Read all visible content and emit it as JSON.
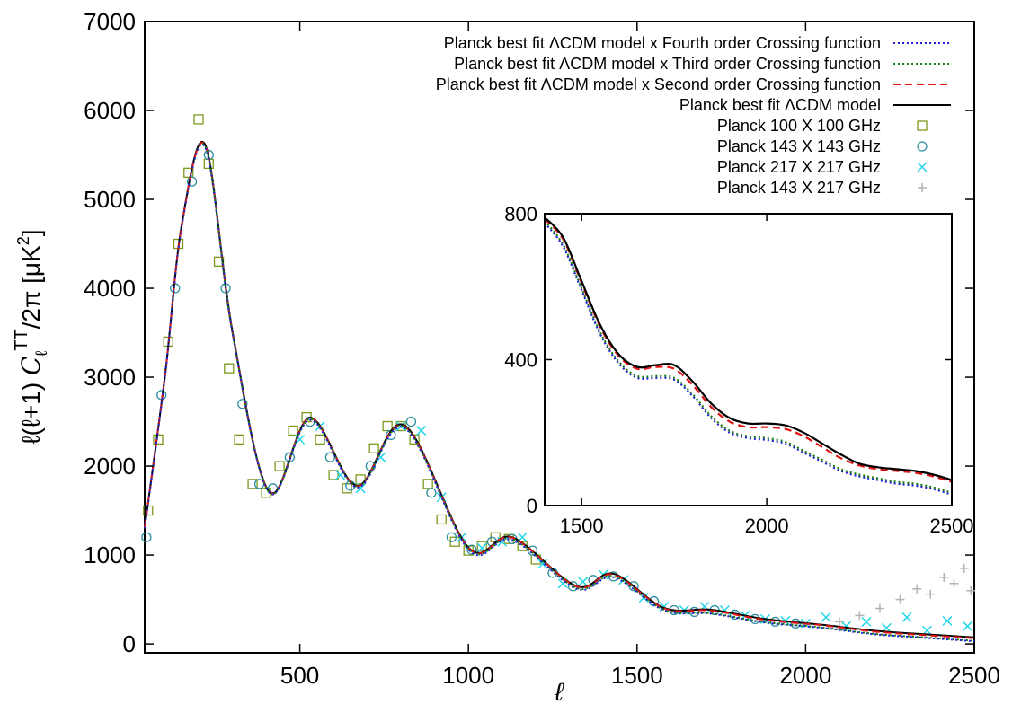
{
  "chart_data": [
    {
      "type": "scatter",
      "role": "main",
      "xlabel": "ℓ",
      "ylabel": {
        "prefix": "ℓ(ℓ+1) ",
        "symbol": "C",
        "sub": "ℓ",
        "sup": "TT",
        "fraction": "/2π",
        "unit_open": " [μK",
        "unit_exp": "2",
        "unit_close": "]"
      },
      "xlim": [
        40,
        2500
      ],
      "ylim": [
        -100,
        7000
      ],
      "x_ticks": [
        500,
        1000,
        1500,
        2000,
        2500
      ],
      "x_tick_labels": [
        "500",
        "1000",
        "1500",
        "2000",
        "2500"
      ],
      "y_ticks": [
        0,
        1000,
        2000,
        3000,
        4000,
        5000,
        6000,
        7000
      ],
      "y_tick_labels": [
        "0",
        "1000",
        "2000",
        "3000",
        "4000",
        "5000",
        "6000",
        "7000"
      ],
      "grid": false,
      "legend_position": "top-right",
      "series": [
        {
          "name": "Planck best fit ΛCDM model x Fourth order Crossing function",
          "kind": "line",
          "style": "dotted",
          "color": "#1f1fd6",
          "x": [
            40,
            100,
            150,
            220,
            300,
            410,
            530,
            670,
            810,
            1000,
            1130,
            1320,
            1430,
            1580,
            1720,
            1880,
            2050,
            2200,
            2350,
            2500
          ],
          "y": [
            1300,
            3000,
            4700,
            5580,
            3500,
            1700,
            2520,
            1760,
            2430,
            1060,
            1170,
            620,
            750,
            380,
            340,
            240,
            180,
            110,
            70,
            30
          ]
        },
        {
          "name": "Planck best fit ΛCDM model x Third order Crossing function",
          "kind": "line",
          "style": "dotted",
          "color": "#1a7f1a",
          "x": [
            40,
            100,
            150,
            220,
            300,
            410,
            530,
            670,
            810,
            1000,
            1130,
            1320,
            1430,
            1580,
            1720,
            1880,
            2050,
            2200,
            2350,
            2500
          ],
          "y": [
            1300,
            3000,
            4700,
            5590,
            3500,
            1700,
            2530,
            1770,
            2440,
            1070,
            1180,
            630,
            760,
            385,
            345,
            245,
            185,
            115,
            75,
            35
          ]
        },
        {
          "name": "Planck best fit ΛCDM model x Second order Crossing function",
          "kind": "line",
          "style": "dashed",
          "color": "#e01414",
          "x": [
            40,
            100,
            150,
            220,
            300,
            410,
            530,
            670,
            810,
            1000,
            1130,
            1320,
            1430,
            1580,
            1720,
            1880,
            2050,
            2200,
            2350,
            2500
          ],
          "y": [
            1310,
            3010,
            4710,
            5600,
            3510,
            1705,
            2540,
            1775,
            2450,
            1080,
            1195,
            645,
            780,
            400,
            375,
            270,
            210,
            140,
            100,
            65
          ]
        },
        {
          "name": "Planck best fit ΛCDM model",
          "kind": "line",
          "style": "solid",
          "color": "#000000",
          "x": [
            40,
            100,
            150,
            220,
            300,
            410,
            530,
            670,
            810,
            1000,
            1130,
            1320,
            1430,
            1580,
            1720,
            1880,
            2050,
            2200,
            2350,
            2500
          ],
          "y": [
            1310,
            3010,
            4720,
            5610,
            3520,
            1710,
            2545,
            1780,
            2460,
            1085,
            1200,
            650,
            790,
            405,
            385,
            280,
            215,
            150,
            110,
            75
          ]
        },
        {
          "name": "Planck 100 X 100 GHz",
          "kind": "points",
          "marker": "square",
          "color": "#7a9a1e",
          "x": [
            50,
            80,
            110,
            140,
            170,
            200,
            230,
            260,
            290,
            320,
            360,
            400,
            440,
            480,
            520,
            560,
            600,
            640,
            680,
            720,
            760,
            800,
            840,
            880,
            920,
            960,
            1000,
            1040,
            1080,
            1120,
            1160,
            1200
          ],
          "y": [
            1500,
            2300,
            3400,
            4500,
            5300,
            5900,
            5400,
            4300,
            3100,
            2300,
            1800,
            1700,
            2000,
            2400,
            2550,
            2300,
            1900,
            1750,
            1850,
            2200,
            2450,
            2450,
            2300,
            1800,
            1400,
            1150,
            1050,
            1100,
            1200,
            1180,
            1100,
            950
          ]
        },
        {
          "name": "Planck 143 X 143 GHz",
          "kind": "points",
          "marker": "circle",
          "color": "#2e8fa0",
          "x": [
            45,
            90,
            130,
            180,
            230,
            280,
            330,
            380,
            420,
            470,
            530,
            590,
            650,
            710,
            770,
            830,
            890,
            950,
            1010,
            1070,
            1130,
            1190,
            1250,
            1310,
            1370,
            1430,
            1490,
            1550,
            1610,
            1670,
            1730,
            1790,
            1850,
            1910,
            1970
          ],
          "y": [
            1200,
            2800,
            4000,
            5200,
            5500,
            4000,
            2700,
            1800,
            1750,
            2100,
            2500,
            2100,
            1780,
            2000,
            2350,
            2500,
            1700,
            1200,
            1060,
            1150,
            1180,
            1050,
            800,
            650,
            720,
            760,
            650,
            480,
            380,
            360,
            380,
            330,
            280,
            250,
            230
          ]
        },
        {
          "name": "Planck 217 X 217 GHz",
          "kind": "points",
          "marker": "cross",
          "color": "#22d6e8",
          "x": [
            500,
            560,
            620,
            680,
            740,
            800,
            860,
            920,
            980,
            1040,
            1100,
            1160,
            1220,
            1280,
            1340,
            1400,
            1460,
            1520,
            1580,
            1640,
            1700,
            1760,
            1820,
            1880,
            1940,
            2000,
            2060,
            2120,
            2180,
            2240,
            2300,
            2360,
            2420,
            2480
          ],
          "y": [
            2300,
            2450,
            1900,
            1750,
            2100,
            2450,
            2400,
            1650,
            1200,
            1080,
            1150,
            1200,
            900,
            680,
            700,
            780,
            720,
            520,
            420,
            380,
            420,
            380,
            320,
            280,
            260,
            230,
            300,
            200,
            250,
            180,
            300,
            150,
            260,
            200
          ]
        },
        {
          "name": "Planck 143 X 217 GHz",
          "kind": "points",
          "marker": "plus",
          "color": "#b3b3b3",
          "x": [
            2100,
            2160,
            2220,
            2280,
            2330,
            2370,
            2410,
            2440,
            2470,
            2490
          ],
          "y": [
            250,
            320,
            400,
            500,
            620,
            560,
            750,
            680,
            850,
            600
          ]
        }
      ]
    },
    {
      "type": "line",
      "role": "inset",
      "xlim": [
        1400,
        2500
      ],
      "ylim": [
        0,
        800
      ],
      "x_ticks": [
        1500,
        2000,
        2500
      ],
      "x_tick_labels": [
        "1500",
        "2000",
        "2500"
      ],
      "y_ticks": [
        0,
        400,
        800
      ],
      "y_tick_labels": [
        "0",
        "400",
        "800"
      ],
      "series": [
        {
          "style": "dotted",
          "color": "#1f1fd6",
          "x": [
            1400,
            1450,
            1500,
            1550,
            1600,
            1650,
            1700,
            1750,
            1800,
            1850,
            1900,
            1950,
            2000,
            2050,
            2100,
            2150,
            2200,
            2250,
            2300,
            2350,
            2400,
            2450,
            2500
          ],
          "y": [
            775,
            710,
            590,
            470,
            390,
            350,
            350,
            345,
            300,
            240,
            200,
            185,
            180,
            170,
            145,
            120,
            95,
            80,
            70,
            60,
            55,
            45,
            30
          ]
        },
        {
          "style": "dotted",
          "color": "#1a7f1a",
          "x": [
            1400,
            1450,
            1500,
            1550,
            1600,
            1650,
            1700,
            1750,
            1800,
            1850,
            1900,
            1950,
            2000,
            2050,
            2100,
            2150,
            2200,
            2250,
            2300,
            2350,
            2400,
            2450,
            2500
          ],
          "y": [
            780,
            715,
            595,
            475,
            395,
            355,
            355,
            350,
            305,
            245,
            205,
            190,
            185,
            175,
            150,
            125,
            100,
            85,
            75,
            65,
            60,
            50,
            35
          ]
        },
        {
          "style": "dashed",
          "color": "#e01414",
          "x": [
            1400,
            1450,
            1500,
            1550,
            1600,
            1650,
            1700,
            1750,
            1800,
            1850,
            1900,
            1950,
            2000,
            2050,
            2100,
            2150,
            2200,
            2250,
            2300,
            2350,
            2400,
            2450,
            2500
          ],
          "y": [
            785,
            730,
            610,
            490,
            410,
            375,
            380,
            375,
            330,
            270,
            230,
            215,
            215,
            210,
            190,
            160,
            130,
            110,
            100,
            95,
            90,
            80,
            65
          ]
        },
        {
          "style": "solid",
          "color": "#000000",
          "x": [
            1400,
            1450,
            1500,
            1550,
            1600,
            1650,
            1700,
            1750,
            1800,
            1850,
            1900,
            1950,
            2000,
            2050,
            2100,
            2150,
            2200,
            2250,
            2300,
            2350,
            2400,
            2450,
            2500
          ],
          "y": [
            790,
            735,
            615,
            495,
            415,
            380,
            385,
            385,
            340,
            280,
            240,
            225,
            225,
            220,
            200,
            170,
            140,
            115,
            105,
            100,
            95,
            85,
            70
          ]
        }
      ]
    }
  ]
}
